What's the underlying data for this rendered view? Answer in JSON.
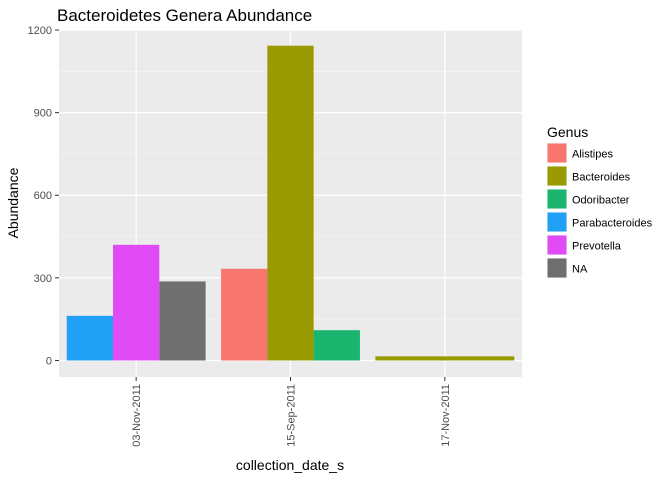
{
  "chart_data": {
    "type": "bar",
    "title": "Bacteroidetes Genera Abundance",
    "xlabel": "collection_date_s",
    "ylabel": "Abundance",
    "categories": [
      "03-Nov-2011",
      "15-Sep-2011",
      "17-Nov-2011"
    ],
    "ylim": [
      -60,
      1200
    ],
    "yticks": [
      0,
      300,
      600,
      900,
      1200
    ],
    "grid": true,
    "legend": {
      "title": "Genus",
      "position": "right",
      "entries": [
        {
          "name": "Alistipes",
          "color": "#F8766D"
        },
        {
          "name": "Bacteroides",
          "color": "#999900"
        },
        {
          "name": "Odoribacter",
          "color": "#1BB56F"
        },
        {
          "name": "Parabacteroides",
          "color": "#20A1F5"
        },
        {
          "name": "Prevotella",
          "color": "#E04BF5"
        },
        {
          "name": "NA",
          "color": "#6F6F6F"
        }
      ]
    },
    "bars": [
      {
        "category": "03-Nov-2011",
        "genus": "Parabacteroides",
        "value": 162
      },
      {
        "category": "03-Nov-2011",
        "genus": "Prevotella",
        "value": 420
      },
      {
        "category": "03-Nov-2011",
        "genus": "NA",
        "value": 287
      },
      {
        "category": "15-Sep-2011",
        "genus": "Alistipes",
        "value": 333
      },
      {
        "category": "15-Sep-2011",
        "genus": "Bacteroides",
        "value": 1143
      },
      {
        "category": "15-Sep-2011",
        "genus": "Odoribacter",
        "value": 110
      },
      {
        "category": "17-Nov-2011",
        "genus": "Bacteroides",
        "value": 15
      }
    ]
  }
}
